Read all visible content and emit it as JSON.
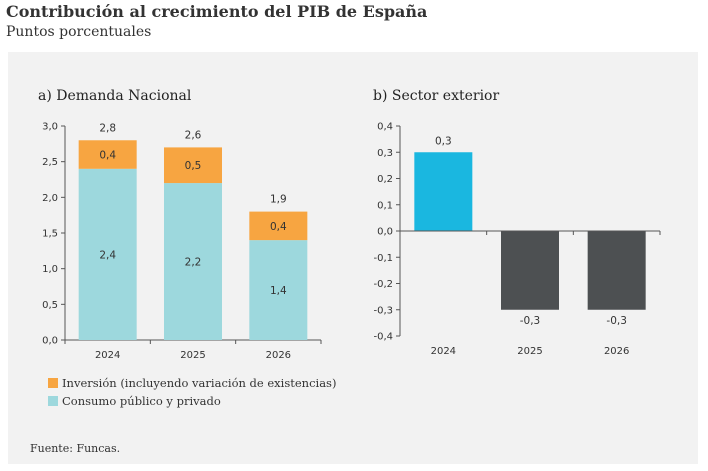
{
  "header": {
    "title": "Contribución al crecimiento del PIB de España",
    "subtitle": "Puntos porcentuales"
  },
  "colors": {
    "inversion": "#f7a541",
    "consumo": "#9dd8dd",
    "positivo": "#1ab7e0",
    "negativo": "#4d5052"
  },
  "chart_data": [
    {
      "type": "bar",
      "stacked": true,
      "title": "a) Demanda Nacional",
      "categories": [
        "2024",
        "2025",
        "2026"
      ],
      "series": [
        {
          "name": "Consumo público y privado",
          "values": [
            2.4,
            2.2,
            1.4
          ],
          "labels": [
            "2,4",
            "2,2",
            "1,4"
          ]
        },
        {
          "name": "Inversión (incluyendo variación de existencias)",
          "values": [
            0.4,
            0.5,
            0.4
          ],
          "labels": [
            "0,4",
            "0,5",
            "0,4"
          ]
        }
      ],
      "totals": [
        2.8,
        2.6,
        1.9
      ],
      "total_labels": [
        "2,8",
        "2,6",
        "1,9"
      ],
      "ylim": [
        0,
        3.0
      ],
      "yticks": [
        "0,0",
        "0,5",
        "1,0",
        "1,5",
        "2,0",
        "2,5",
        "3,0"
      ],
      "legend": "bottom-left"
    },
    {
      "type": "bar",
      "title": "b) Sector exterior",
      "categories": [
        "2024",
        "2025",
        "2026"
      ],
      "values": [
        0.3,
        -0.3,
        -0.3
      ],
      "labels": [
        "0,3",
        "-0,3",
        "-0,3"
      ],
      "ylim": [
        -0.4,
        0.4
      ],
      "yticks": [
        "-0,4",
        "-0,3",
        "-0,2",
        "-0,1",
        "0,0",
        "0,1",
        "0,2",
        "0,3",
        "0,4"
      ]
    }
  ],
  "source": "Fuente: Funcas."
}
